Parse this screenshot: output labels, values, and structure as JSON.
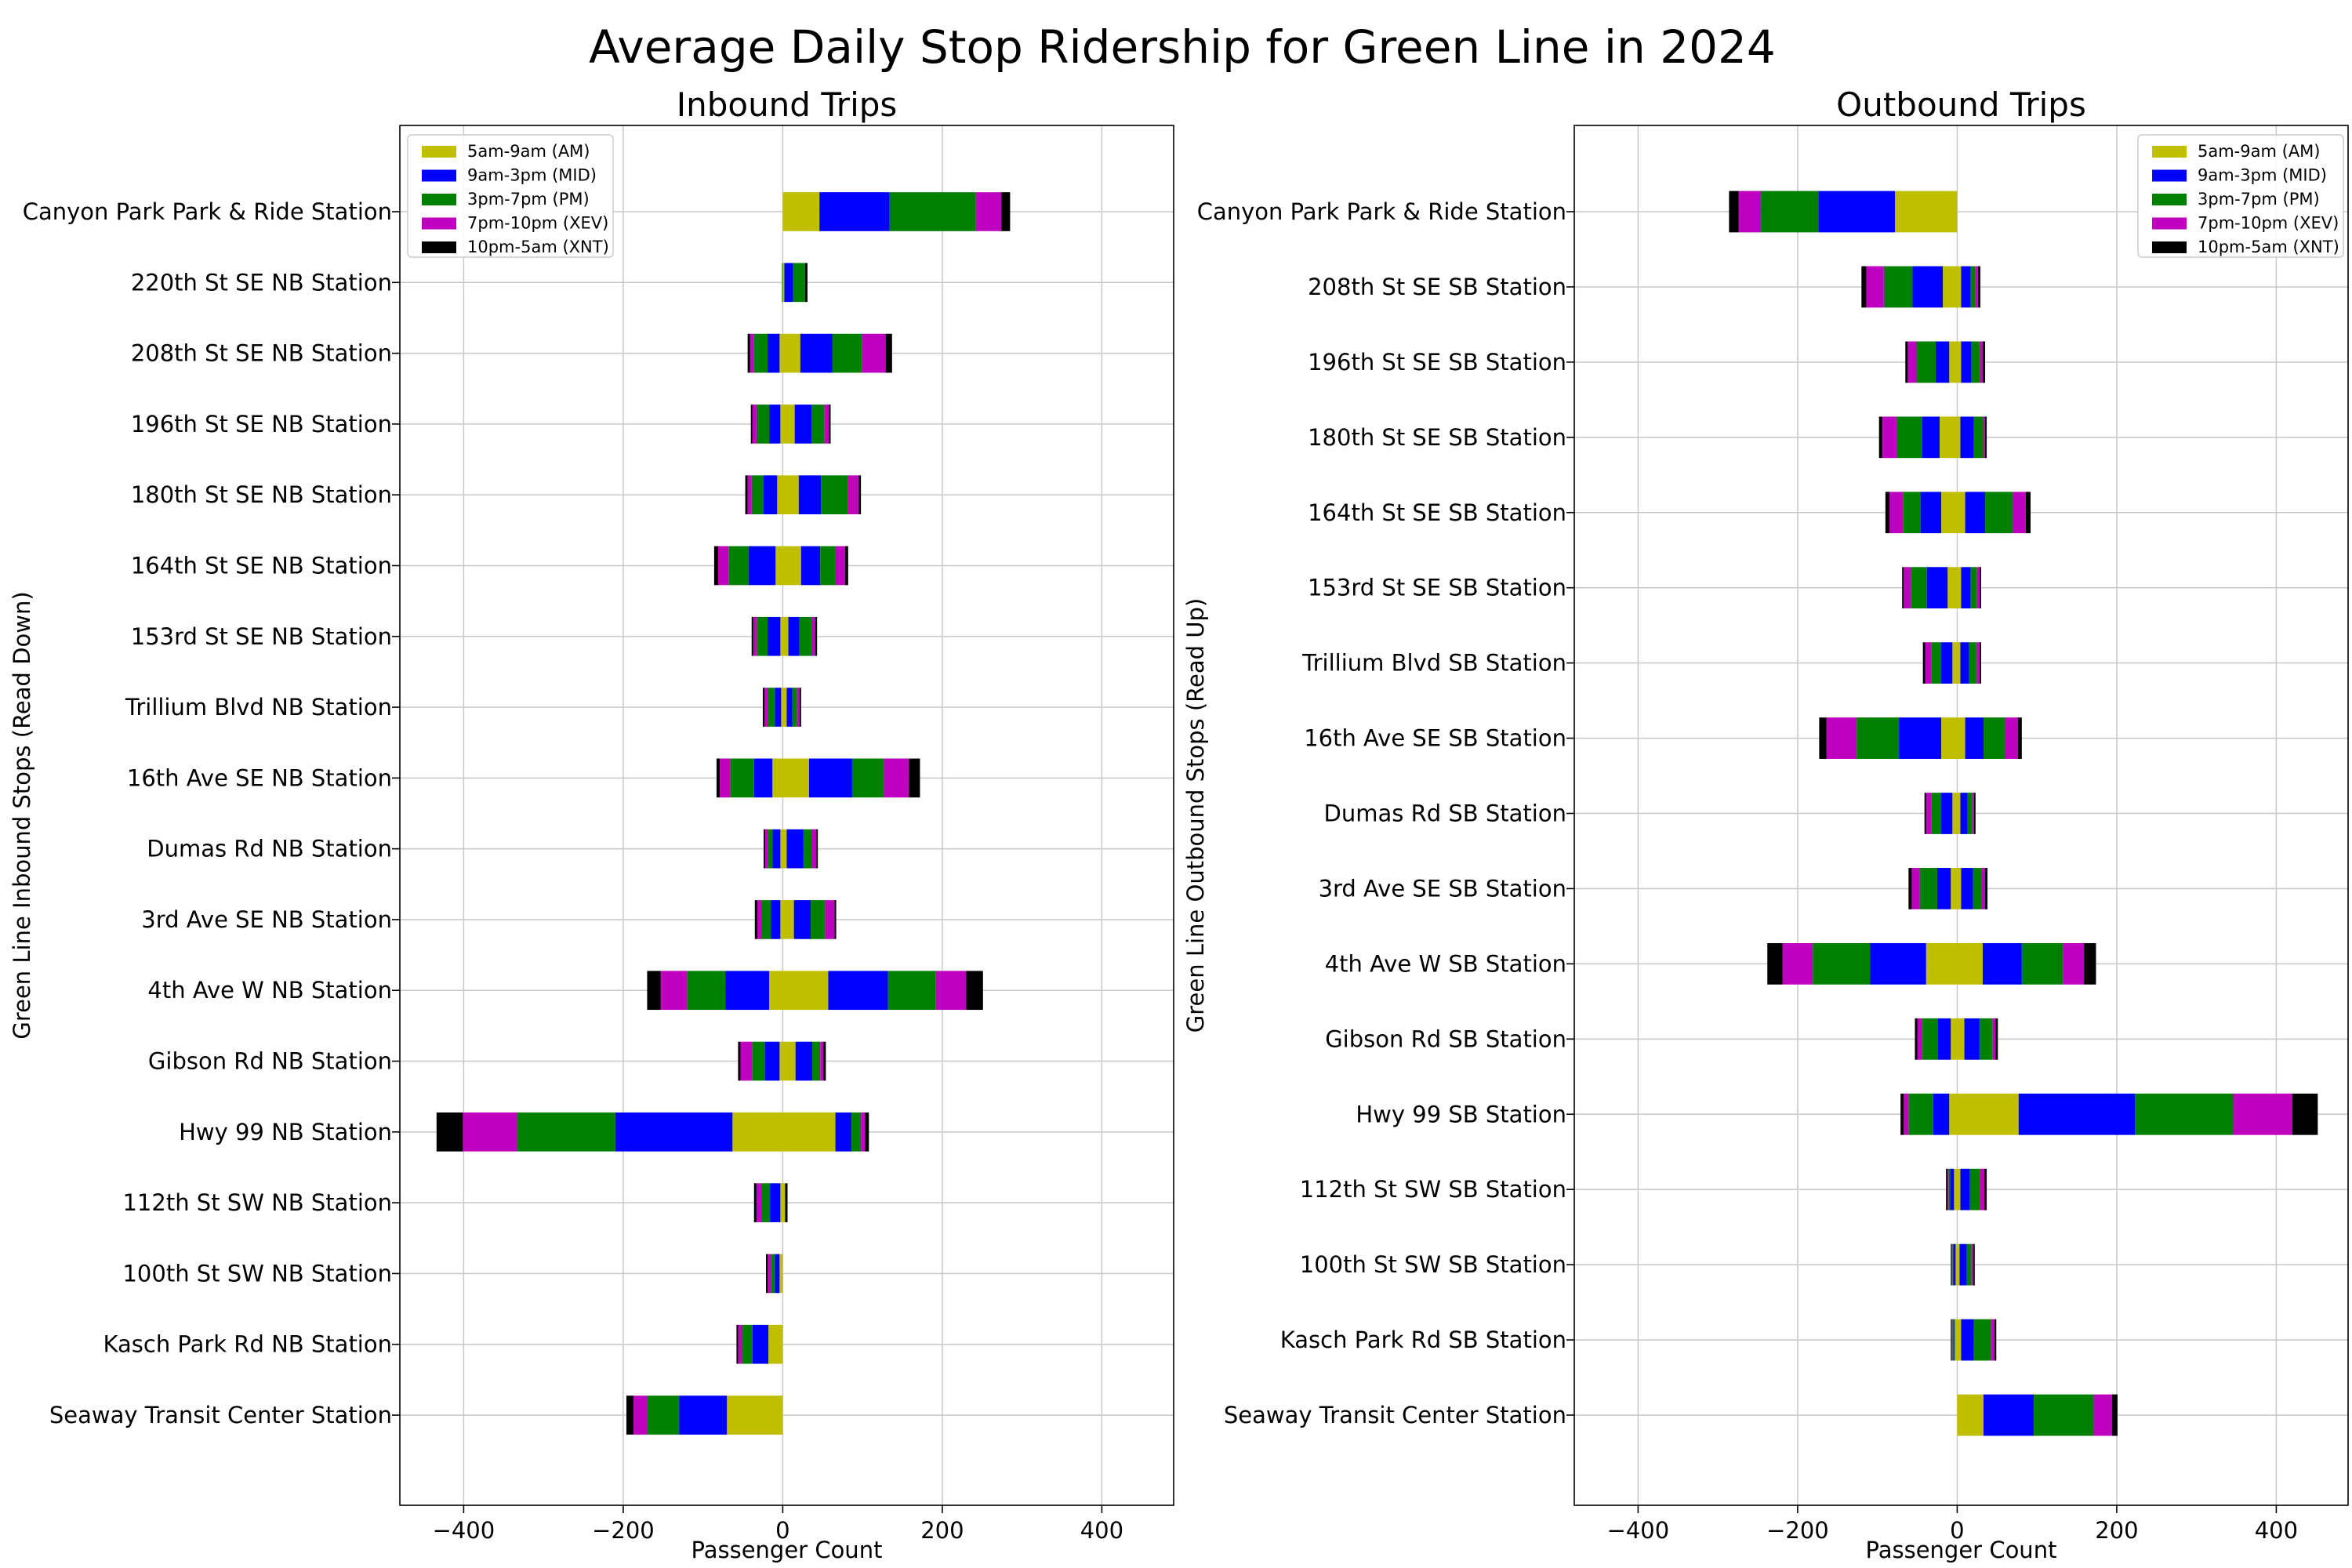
{
  "figure": {
    "title": "Average Daily Stop Ridership for Green Line in 2024"
  },
  "legend_entries": [
    {
      "label": "5am-9am (AM)",
      "color": "#bfbf00"
    },
    {
      "label": "9am-3pm (MID)",
      "color": "#0000ff"
    },
    {
      "label": "3pm-7pm (PM)",
      "color": "#008000"
    },
    {
      "label": "7pm-10pm (XEV)",
      "color": "#bf00bf"
    },
    {
      "label": "10pm-5am (XNT)",
      "color": "#000000"
    }
  ],
  "chart_data": [
    {
      "type": "bar",
      "orientation": "horizontal",
      "stacked": true,
      "title": "Inbound Trips",
      "xlabel": "Passenger Count",
      "ylabel": "Green Line Inbound Stops (Read Down)",
      "xlim": [
        -480,
        490
      ],
      "xticks": [
        -400,
        -200,
        0,
        200,
        400
      ],
      "grid": true,
      "legend": "top-left",
      "note": "Bars diverge from 0: boardings stacked to the right (positive), alightings stacked to the left (negative).",
      "categories": [
        "Canyon Park Park & Ride Station",
        "220th St SE NB Station",
        "208th St SE NB Station",
        "196th St SE NB Station",
        "180th St SE NB Station",
        "164th St SE NB Station",
        "153rd St SE NB Station",
        "Trillium Blvd NB Station",
        "16th Ave SE NB Station",
        "Dumas Rd NB Station",
        "3rd Ave SE NB Station",
        "4th Ave W NB Station",
        "Gibson Rd NB Station",
        "Hwy 99 NB Station",
        "112th St SW NB Station",
        "100th St SW NB Station",
        "Kasch Park Rd NB Station",
        "Seaway Transit Center Station"
      ],
      "series": [
        {
          "name": "5am-9am (AM)",
          "positive": [
            46,
            2,
            22,
            15,
            20,
            23,
            7,
            5,
            33,
            5,
            14,
            57,
            16,
            66,
            3,
            0,
            0,
            0
          ],
          "negative": [
            0,
            0,
            -4,
            -3,
            -7,
            -9,
            -3,
            -2,
            -13,
            -3,
            -3,
            -17,
            -4,
            -63,
            -3,
            -4,
            -18,
            -70
          ]
        },
        {
          "name": "9am-3pm (MID)",
          "positive": [
            88,
            11,
            40,
            21,
            28,
            24,
            14,
            7,
            54,
            21,
            21,
            75,
            21,
            20,
            0,
            0,
            0,
            0
          ],
          "negative": [
            0,
            0,
            -15,
            -14,
            -17,
            -34,
            -16,
            -8,
            -23,
            -10,
            -12,
            -55,
            -18,
            -147,
            -13,
            -6,
            -20,
            -60
          ]
        },
        {
          "name": "3pm-7pm (PM)",
          "positive": [
            108,
            15,
            37,
            16,
            34,
            19,
            15,
            6,
            40,
            11,
            18,
            60,
            10,
            12,
            0,
            0,
            0,
            0
          ],
          "negative": [
            0,
            -1,
            -17,
            -16,
            -15,
            -25,
            -13,
            -9,
            -30,
            -6,
            -12,
            -48,
            -16,
            -123,
            -11,
            -5,
            -13,
            -40
          ]
        },
        {
          "name": "7pm-10pm (XEV)",
          "positive": [
            32,
            0,
            30,
            6,
            13,
            12,
            5,
            3,
            31,
            5,
            12,
            38,
            4,
            5,
            0,
            0,
            0,
            0
          ],
          "negative": [
            0,
            0,
            -5,
            -5,
            -5,
            -13,
            -5,
            -4,
            -13,
            -3,
            -5,
            -33,
            -15,
            -68,
            -6,
            -4,
            -5,
            -17
          ]
        },
        {
          "name": "10pm-5am (XNT)",
          "positive": [
            11,
            3,
            8,
            2,
            3,
            4,
            2,
            2,
            14,
            2,
            2,
            21,
            3,
            5,
            3,
            0,
            0,
            0
          ],
          "negative": [
            0,
            0,
            -3,
            -2,
            -3,
            -5,
            -2,
            -2,
            -4,
            -2,
            -3,
            -17,
            -3,
            -33,
            -3,
            -2,
            -2,
            -9
          ]
        }
      ]
    },
    {
      "type": "bar",
      "orientation": "horizontal",
      "stacked": true,
      "title": "Outbound Trips",
      "xlabel": "Passenger Count",
      "ylabel": "Green Line Outbound Stops (Read Up)",
      "xlim": [
        -480,
        490
      ],
      "xticks": [
        -400,
        -200,
        0,
        200,
        400
      ],
      "grid": true,
      "legend": "top-right",
      "note": "Bars diverge from 0: boardings stacked to the right (positive), alightings stacked to the left (negative).",
      "categories": [
        "Canyon Park Park & Ride Station",
        "208th St SE SB Station",
        "196th St SE SB Station",
        "180th St SE SB Station",
        "164th St SE SB Station",
        "153rd St SE SB Station",
        "Trillium Blvd SB Station",
        "16th Ave SE SB Station",
        "Dumas Rd SB Station",
        "3rd Ave SE SB Station",
        "4th Ave W SB Station",
        "Gibson Rd SB Station",
        "Hwy 99 SB Station",
        "112th St SW SB Station",
        "100th St SW SB Station",
        "Kasch Park Rd SB Station",
        "Seaway Transit Center Station"
      ],
      "series": [
        {
          "name": "5am-9am (AM)",
          "positive": [
            0,
            5,
            5,
            4,
            10,
            5,
            4,
            10,
            4,
            5,
            32,
            9,
            77,
            4,
            3,
            5,
            33
          ],
          "negative": [
            -78,
            -18,
            -10,
            -22,
            -20,
            -12,
            -6,
            -20,
            -6,
            -8,
            -39,
            -8,
            -10,
            -4,
            -2,
            -3,
            0
          ]
        },
        {
          "name": "9am-3pm (MID)",
          "positive": [
            0,
            12,
            13,
            17,
            25,
            12,
            11,
            23,
            9,
            15,
            49,
            19,
            146,
            12,
            9,
            16,
            63
          ],
          "negative": [
            -96,
            -38,
            -17,
            -22,
            -26,
            -26,
            -14,
            -53,
            -14,
            -17,
            -70,
            -16,
            -20,
            -5,
            -3,
            -1,
            0
          ]
        },
        {
          "name": "3pm-7pm (PM)",
          "positive": [
            0,
            6,
            10,
            11,
            35,
            8,
            9,
            27,
            6,
            11,
            52,
            16,
            123,
            13,
            6,
            22,
            75
          ],
          "negative": [
            -72,
            -36,
            -24,
            -32,
            -22,
            -20,
            -12,
            -53,
            -12,
            -22,
            -72,
            -20,
            -31,
            -2,
            -1,
            -2,
            0
          ]
        },
        {
          "name": "7pm-10pm (XEV)",
          "positive": [
            0,
            3,
            4,
            3,
            16,
            3,
            4,
            16,
            2,
            4,
            26,
            4,
            74,
            5,
            2,
            4,
            23
          ],
          "negative": [
            -28,
            -22,
            -11,
            -18,
            -17,
            -9,
            -8,
            -38,
            -7,
            -10,
            -38,
            -6,
            -6,
            -1,
            -1,
            -1,
            0
          ]
        },
        {
          "name": "10pm-5am (XNT)",
          "positive": [
            0,
            3,
            3,
            2,
            6,
            2,
            2,
            5,
            2,
            3,
            15,
            3,
            32,
            3,
            2,
            2,
            7
          ],
          "negative": [
            -12,
            -6,
            -3,
            -4,
            -5,
            -2,
            -3,
            -9,
            -2,
            -4,
            -19,
            -3,
            -4,
            -2,
            -1,
            -1,
            0
          ]
        }
      ]
    }
  ]
}
